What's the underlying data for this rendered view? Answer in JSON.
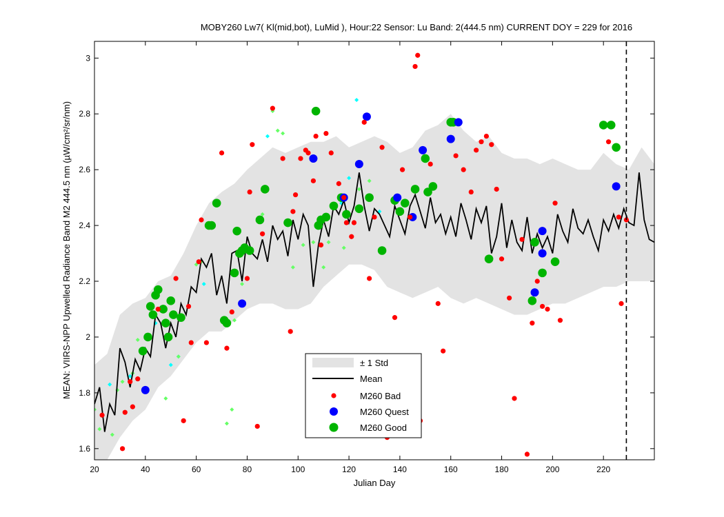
{
  "chart_data": {
    "type": "scatter",
    "title": "MOBY260   Lw7( Kl(mid,bot), LuMid ),   Hour:22 Sensor: Lu Band: 2(444.5 nm)   CURRENT DOY = 229 for 2016",
    "xlabel": "Julian Day",
    "ylabel": "MEAN: VIIRS-NPP Upwelled Radiance Band M2 444.5 nm (µW/cm²/sr/nm)",
    "xlim": [
      20,
      240
    ],
    "ylim": [
      1.56,
      3.06
    ],
    "xticks": [
      20,
      40,
      60,
      80,
      100,
      120,
      140,
      160,
      180,
      200,
      220
    ],
    "yticks": [
      1.6,
      1.8,
      2.0,
      2.2,
      2.4,
      2.6,
      2.8,
      3.0
    ],
    "current_doy": 229,
    "colors": {
      "std_band": "#e3e3e3",
      "mean": "#000000",
      "bad": "#ff0000",
      "quest": "#0000ff",
      "good": "#00b400",
      "prev_cyan": "#00ffff",
      "prev_green": "#66ff66"
    },
    "legend": {
      "position": "bottom-center",
      "entries": [
        "± 1 Std",
        "Mean",
        "M260 Bad",
        "M260 Quest",
        "M260 Good"
      ]
    },
    "mean_series": {
      "name": "Mean",
      "x": [
        20,
        22,
        24,
        26,
        28,
        30,
        32,
        34,
        36,
        38,
        40,
        42,
        44,
        46,
        48,
        50,
        52,
        54,
        56,
        58,
        60,
        62,
        64,
        66,
        68,
        70,
        72,
        74,
        76,
        78,
        80,
        82,
        84,
        86,
        88,
        90,
        92,
        94,
        96,
        98,
        100,
        102,
        104,
        106,
        108,
        110,
        112,
        114,
        116,
        118,
        120,
        122,
        124,
        126,
        128,
        130,
        132,
        134,
        136,
        138,
        140,
        142,
        144,
        146,
        148,
        150,
        152,
        154,
        156,
        158,
        160,
        162,
        164,
        166,
        168,
        170,
        172,
        174,
        176,
        178,
        180,
        182,
        184,
        186,
        188,
        190,
        192,
        194,
        196,
        198,
        200,
        202,
        204,
        206,
        208,
        210,
        212,
        214,
        216,
        218,
        220,
        222,
        224,
        226,
        228,
        230,
        232,
        234,
        236,
        238,
        240
      ],
      "y": [
        1.76,
        1.82,
        1.66,
        1.76,
        1.72,
        1.96,
        1.91,
        1.82,
        1.92,
        1.88,
        1.96,
        1.93,
        2.08,
        2.05,
        1.96,
        2.05,
        2.0,
        2.12,
        2.08,
        2.18,
        2.16,
        2.28,
        2.25,
        2.3,
        2.15,
        2.22,
        2.12,
        2.3,
        2.31,
        2.2,
        2.36,
        2.3,
        2.28,
        2.35,
        2.27,
        2.4,
        2.35,
        2.38,
        2.29,
        2.42,
        2.35,
        2.44,
        2.4,
        2.18,
        2.33,
        2.42,
        2.36,
        2.47,
        2.44,
        2.49,
        2.41,
        2.47,
        2.59,
        2.47,
        2.38,
        2.46,
        2.44,
        2.4,
        2.36,
        2.47,
        2.42,
        2.37,
        2.47,
        2.51,
        2.45,
        2.39,
        2.5,
        2.41,
        2.44,
        2.37,
        2.43,
        2.36,
        2.48,
        2.42,
        2.35,
        2.46,
        2.41,
        2.47,
        2.3,
        2.36,
        2.48,
        2.32,
        2.42,
        2.34,
        2.31,
        2.43,
        2.3,
        2.37,
        2.32,
        2.36,
        2.3,
        2.44,
        2.38,
        2.34,
        2.46,
        2.39,
        2.37,
        2.42,
        2.36,
        2.31,
        2.42,
        2.38,
        2.44,
        2.39,
        2.46,
        2.41,
        2.4,
        2.59,
        2.42,
        2.35,
        2.34
      ]
    },
    "std_band": {
      "name": "± 1 Std",
      "x": [
        20,
        25,
        30,
        35,
        40,
        45,
        50,
        55,
        60,
        65,
        70,
        75,
        80,
        85,
        90,
        95,
        100,
        105,
        110,
        115,
        120,
        125,
        130,
        135,
        140,
        145,
        150,
        155,
        160,
        165,
        170,
        175,
        180,
        185,
        190,
        195,
        200,
        205,
        210,
        215,
        220,
        225,
        230,
        235,
        240
      ],
      "upper": [
        1.9,
        1.94,
        2.08,
        2.12,
        2.14,
        2.2,
        2.22,
        2.3,
        2.4,
        2.48,
        2.52,
        2.55,
        2.6,
        2.64,
        2.68,
        2.66,
        2.68,
        2.7,
        2.7,
        2.72,
        2.68,
        2.7,
        2.72,
        2.7,
        2.66,
        2.68,
        2.74,
        2.76,
        2.8,
        2.74,
        2.7,
        2.72,
        2.66,
        2.64,
        2.64,
        2.62,
        2.64,
        2.62,
        2.6,
        2.6,
        2.66,
        2.62,
        2.6,
        2.68,
        2.62
      ],
      "lower": [
        1.56,
        1.56,
        1.64,
        1.7,
        1.74,
        1.82,
        1.86,
        1.92,
        1.98,
        2.02,
        2.02,
        2.06,
        2.1,
        2.12,
        2.12,
        2.1,
        2.1,
        2.12,
        2.18,
        2.22,
        2.26,
        2.26,
        2.24,
        2.18,
        2.16,
        2.14,
        2.16,
        2.18,
        2.14,
        2.12,
        2.14,
        2.12,
        2.1,
        2.08,
        2.08,
        2.1,
        2.12,
        2.12,
        2.14,
        2.16,
        2.18,
        2.18,
        2.2,
        2.2,
        2.2
      ]
    },
    "series": [
      {
        "name": "M260 Bad",
        "x": [
          23,
          31,
          32,
          34,
          35,
          37,
          45,
          52,
          55,
          57,
          58,
          61,
          62,
          64,
          70,
          72,
          74,
          80,
          81,
          82,
          84,
          86,
          90,
          94,
          97,
          98,
          99,
          101,
          103,
          104,
          106,
          107,
          109,
          111,
          113,
          116,
          118,
          119,
          121,
          122,
          126,
          128,
          130,
          133,
          135,
          138,
          141,
          144,
          146,
          147,
          148,
          152,
          155,
          157,
          162,
          165,
          168,
          170,
          172,
          174,
          176,
          178,
          180,
          183,
          185,
          188,
          190,
          192,
          194,
          196,
          198,
          201,
          203,
          222,
          226,
          227,
          229
        ],
        "y": [
          1.72,
          1.6,
          1.73,
          1.84,
          1.75,
          1.85,
          2.1,
          2.21,
          1.7,
          2.11,
          1.98,
          2.27,
          2.42,
          1.98,
          2.66,
          1.96,
          2.09,
          2.21,
          2.52,
          2.69,
          1.68,
          2.37,
          2.82,
          2.64,
          2.02,
          2.45,
          2.51,
          2.64,
          2.67,
          2.66,
          2.56,
          2.72,
          2.33,
          2.73,
          2.66,
          2.55,
          2.5,
          2.41,
          2.36,
          2.41,
          2.77,
          2.21,
          2.43,
          2.68,
          1.64,
          2.07,
          2.6,
          2.43,
          2.97,
          3.01,
          1.7,
          2.62,
          2.12,
          1.95,
          2.65,
          2.6,
          2.52,
          2.67,
          2.7,
          2.72,
          2.69,
          2.53,
          2.28,
          2.14,
          1.78,
          2.35,
          1.58,
          2.05,
          2.2,
          2.11,
          2.1,
          2.48,
          2.06,
          2.7,
          2.43,
          2.12,
          2.42
        ]
      },
      {
        "name": "M260 Quest",
        "x": [
          40,
          78,
          106,
          118,
          124,
          127,
          139,
          145,
          149,
          160,
          163,
          193,
          196,
          196,
          225
        ],
        "y": [
          1.81,
          2.12,
          2.64,
          2.5,
          2.62,
          2.79,
          2.5,
          2.43,
          2.67,
          2.71,
          2.77,
          2.16,
          2.38,
          2.3,
          2.54
        ]
      },
      {
        "name": "M260 Good",
        "x": [
          39,
          41,
          42,
          43,
          44,
          45,
          47,
          48,
          49,
          50,
          51,
          54,
          65,
          66,
          68,
          71,
          72,
          75,
          76,
          77,
          78,
          79,
          81,
          85,
          87,
          96,
          107,
          108,
          109,
          111,
          114,
          117,
          119,
          124,
          128,
          133,
          138,
          140,
          142,
          146,
          150,
          151,
          153,
          160,
          161,
          175,
          192,
          193,
          196,
          201,
          220,
          223,
          225
        ],
        "y": [
          1.95,
          2.0,
          2.11,
          2.08,
          2.15,
          2.17,
          2.1,
          2.05,
          2.0,
          2.13,
          2.08,
          2.07,
          2.4,
          2.4,
          2.48,
          2.06,
          2.05,
          2.23,
          2.38,
          2.3,
          2.31,
          2.32,
          2.31,
          2.42,
          2.53,
          2.41,
          2.81,
          2.4,
          2.42,
          2.43,
          2.47,
          2.5,
          2.44,
          2.46,
          2.5,
          2.31,
          2.49,
          2.45,
          2.48,
          2.53,
          2.64,
          2.52,
          2.54,
          2.77,
          2.77,
          2.28,
          2.13,
          2.34,
          2.23,
          2.27,
          2.76,
          2.76,
          2.68
        ]
      },
      {
        "name": "prior-year (cyan)",
        "x": [
          26,
          34,
          44,
          50,
          53,
          63,
          88,
          117,
          120,
          123,
          132
        ],
        "y": [
          1.83,
          1.86,
          2.05,
          1.9,
          1.93,
          2.19,
          2.72,
          2.48,
          2.57,
          2.85,
          2.45
        ]
      },
      {
        "name": "prior-year (light green)",
        "x": [
          20,
          22,
          27,
          29,
          31,
          35,
          37,
          43,
          48,
          53,
          60,
          62,
          72,
          74,
          75,
          78,
          86,
          90,
          92,
          94,
          98,
          102,
          106,
          110,
          112,
          118,
          124,
          128
        ],
        "y": [
          1.74,
          1.67,
          1.65,
          1.81,
          1.84,
          1.87,
          1.99,
          2.08,
          1.78,
          1.93,
          2.26,
          2.27,
          1.69,
          1.74,
          2.06,
          2.19,
          2.44,
          2.81,
          2.74,
          2.73,
          2.25,
          2.33,
          2.34,
          2.25,
          2.34,
          2.32,
          2.53,
          2.56
        ]
      }
    ]
  }
}
